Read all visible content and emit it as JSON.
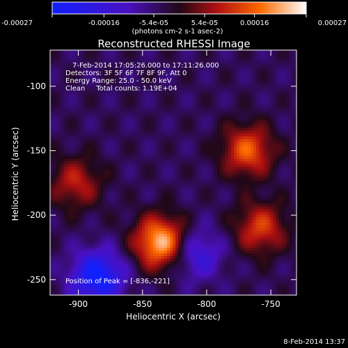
{
  "chart_data": {
    "type": "heatmap",
    "title": "Reconstructed RHESSI Image",
    "xlabel": "Heliocentric X (arcsec)",
    "ylabel": "Heliocentric Y (arcsec)",
    "xlim": [
      -922,
      -730
    ],
    "ylim": [
      -262,
      -72
    ],
    "x_ticks": [
      -900,
      -850,
      -800,
      -750
    ],
    "y_ticks": [
      -250,
      -200,
      -150,
      -100
    ],
    "colorbar": {
      "ticks": [
        "-0.00027",
        "-0.00016",
        "-5.4e-05",
        "5.4e-05",
        "0.00016",
        "0.00027"
      ],
      "label": "(photons cm-2 s-1 asec-2)",
      "range": [
        -0.00027,
        0.00027
      ]
    },
    "annotations": [
      "7-Feb-2014 17:05:26.000 to 17:11:26.000",
      "Detectors: 3F 5F 6F 7F 8F 9F, Att 0",
      "Energy Range: 25.0 - 50.0 keV",
      "Clean     Total counts: 1.19E+04"
    ],
    "peak_label": "Position of Peak = [-836,-221]",
    "peak": [
      -836,
      -221
    ],
    "sources": [
      {
        "x": -836,
        "y": -221,
        "value": 0.00027
      },
      {
        "x": -768,
        "y": -150,
        "value": 0.00019
      },
      {
        "x": -758,
        "y": -210,
        "value": 0.00016
      },
      {
        "x": -902,
        "y": -175,
        "value": 0.00013
      },
      {
        "x": -885,
        "y": -248,
        "value": -0.00024
      },
      {
        "x": -808,
        "y": -230,
        "value": -0.00013
      }
    ]
  },
  "footer": {
    "timestamp": "8-Feb-2014 13:37"
  }
}
